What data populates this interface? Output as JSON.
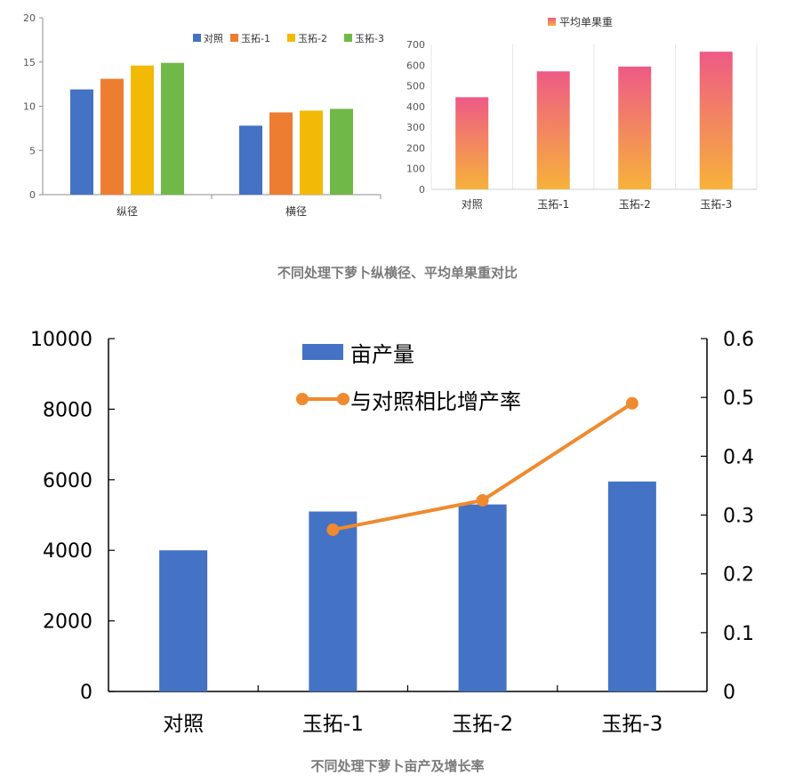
{
  "captions": {
    "top": "不同处理下萝卜纵横径、平均单果重对比",
    "bottom": "不同处理下萝卜亩产及增长率"
  },
  "colors": {
    "series": [
      "#4472C4",
      "#ED7D31",
      "#F2BA07",
      "#70B948"
    ],
    "bar_gradient_top": "#EE5A86",
    "bar_gradient_bottom": "#F7B23A",
    "yield_bar": "#4472C4",
    "growth_line": "#F08A2F"
  },
  "chart_data": [
    {
      "id": "diameter",
      "type": "bar",
      "categories": [
        "纵径",
        "横径"
      ],
      "series": [
        {
          "name": "对照",
          "values": [
            11.9,
            7.8
          ]
        },
        {
          "name": "玉拓-1",
          "values": [
            13.1,
            9.3
          ]
        },
        {
          "name": "玉拓-2",
          "values": [
            14.6,
            9.5
          ]
        },
        {
          "name": "玉拓-3",
          "values": [
            14.9,
            9.7
          ]
        }
      ],
      "ylim": [
        0,
        20
      ],
      "yticks": [
        0,
        5,
        10,
        15,
        20
      ],
      "legend": "top-right",
      "grid": false
    },
    {
      "id": "weight",
      "type": "bar",
      "categories": [
        "对照",
        "玉拓-1",
        "玉拓-2",
        "玉拓-3"
      ],
      "series": [
        {
          "name": "平均单果重",
          "values": [
            445,
            570,
            593,
            665
          ]
        }
      ],
      "ylim": [
        0,
        700
      ],
      "yticks": [
        0,
        100,
        200,
        300,
        400,
        500,
        600,
        700
      ],
      "legend": "top",
      "grid": true
    },
    {
      "id": "yield",
      "type": "bar+line",
      "categories": [
        "对照",
        "玉拓-1",
        "玉拓-2",
        "玉拓-3"
      ],
      "series": [
        {
          "name": "亩产量",
          "type": "bar",
          "axis": "left",
          "values": [
            4000,
            5100,
            5300,
            5950
          ]
        },
        {
          "name": "与对照相比增产率",
          "type": "line",
          "axis": "right",
          "values": [
            null,
            0.275,
            0.325,
            0.49
          ]
        }
      ],
      "ylim_left": [
        0,
        10000
      ],
      "yticks_left": [
        0,
        2000,
        4000,
        6000,
        8000,
        10000
      ],
      "ylim_right": [
        0,
        0.6
      ],
      "yticks_right": [
        0,
        0.1,
        0.2,
        0.3,
        0.4,
        0.5,
        0.6
      ],
      "legend": "top",
      "grid": false
    }
  ]
}
